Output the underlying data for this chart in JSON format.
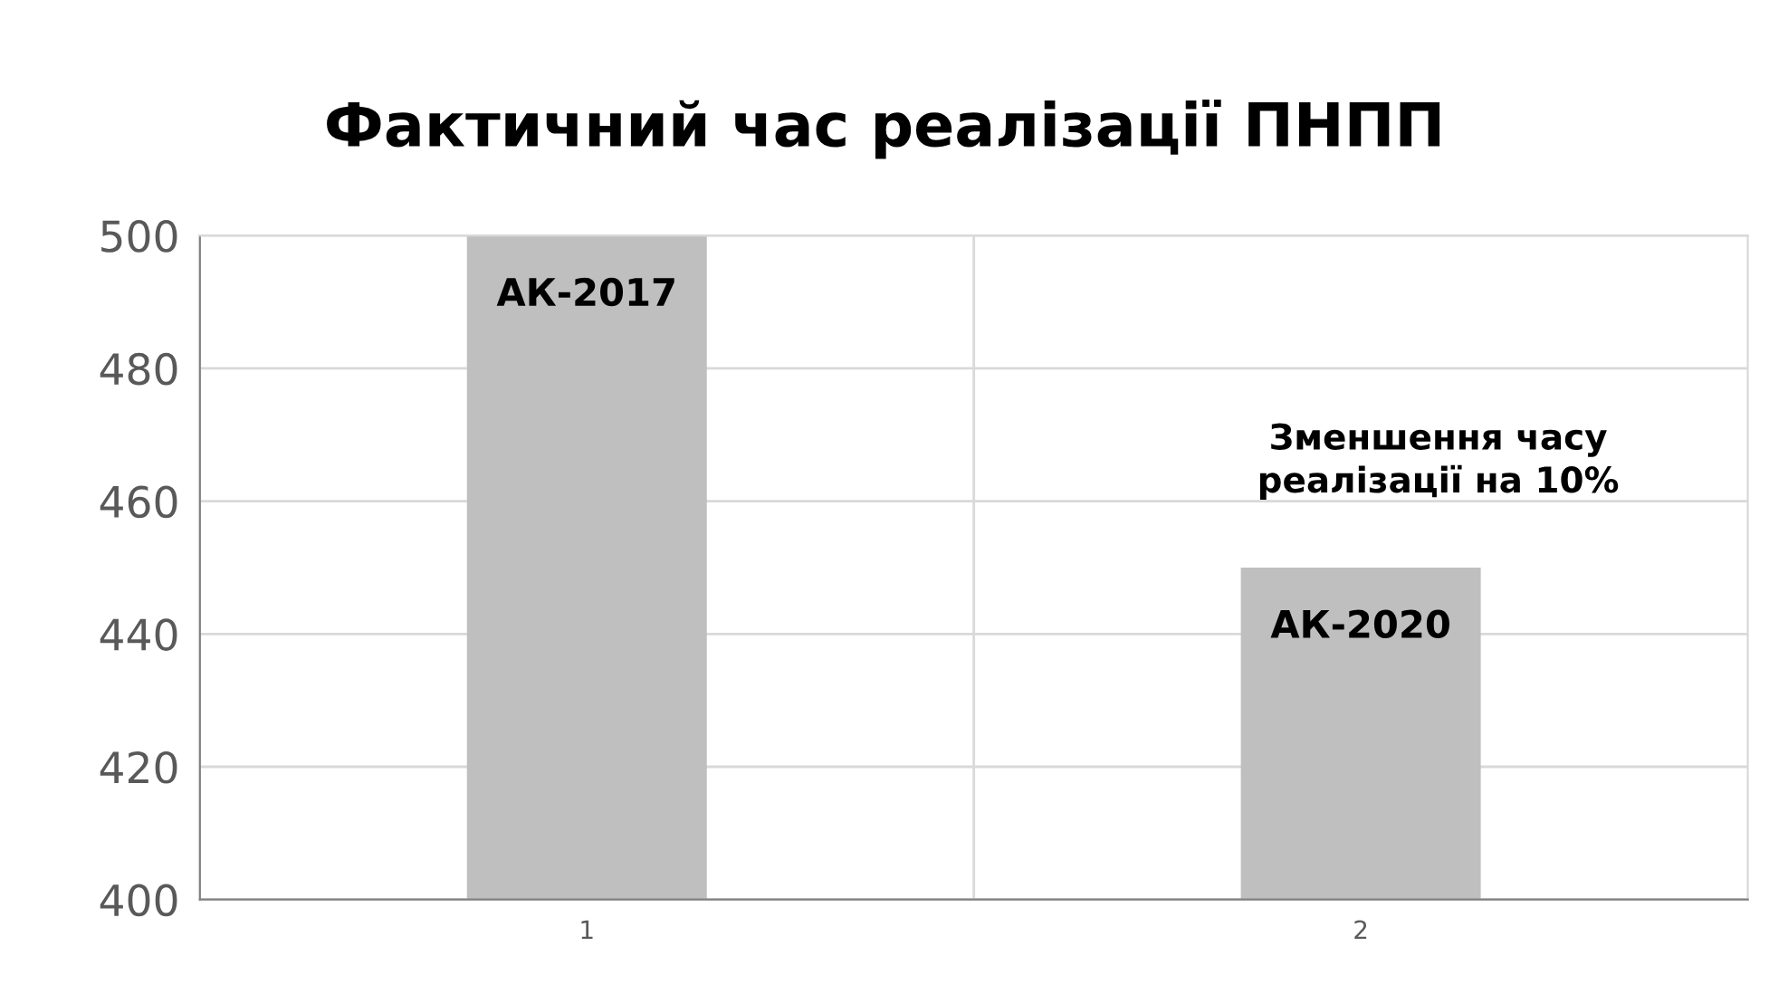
{
  "chart_data": {
    "type": "bar",
    "title": "Фактичний час реалізації ПНПП",
    "categories": [
      "1",
      "2"
    ],
    "values": [
      500,
      450
    ],
    "color": "#bfbfbf",
    "ylim": [
      400,
      500
    ],
    "yticks": [
      400,
      420,
      440,
      460,
      480,
      500
    ],
    "grid": true,
    "annotations": [
      "АК-2017",
      "АК-2020",
      "Зменшення часу\nреалізації на 10%"
    ]
  }
}
